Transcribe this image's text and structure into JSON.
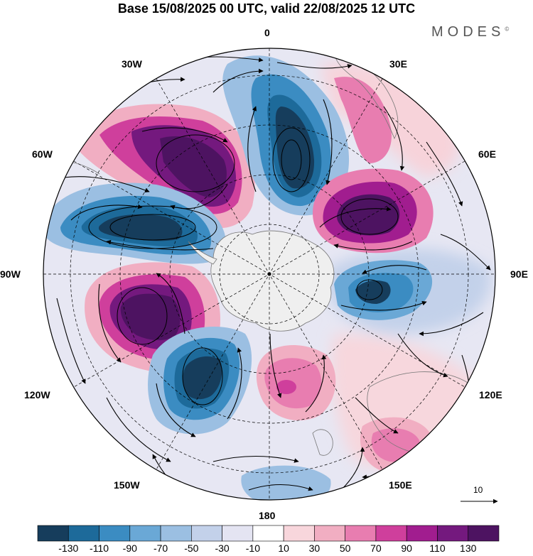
{
  "header": {
    "title": "Base 15/08/2025 00 UTC, valid 22/08/2025 12 UTC",
    "brand": "MODES",
    "brand_mark": "©"
  },
  "map": {
    "projection": "polar-stereographic-south",
    "longitude_labels": {
      "top": "0",
      "bottom": "180",
      "left": "90W",
      "right": "90E",
      "upper_left_1": "30W",
      "upper_left_2": "60W",
      "upper_right_1": "30E",
      "upper_right_2": "60E",
      "lower_left_1": "120W",
      "lower_left_2": "150W",
      "lower_right_1": "120E",
      "lower_right_2": "150E"
    },
    "anomaly_centers": [
      {
        "name": "low-0-meridian",
        "sign": "negative",
        "level": -130
      },
      {
        "name": "high-30W-45W",
        "sign": "positive",
        "level": 130
      },
      {
        "name": "low-60W-90W",
        "sign": "negative",
        "level": -130
      },
      {
        "name": "high-30E-60E",
        "sign": "positive",
        "level": 130
      },
      {
        "name": "low-90E",
        "sign": "negative",
        "level": -110
      },
      {
        "name": "high-100W",
        "sign": "positive",
        "level": 130
      },
      {
        "name": "low-140W",
        "sign": "negative",
        "level": -130
      },
      {
        "name": "high-170E",
        "sign": "positive",
        "level": 90
      },
      {
        "name": "high-150E",
        "sign": "positive",
        "level": 50
      },
      {
        "name": "low-180",
        "sign": "negative",
        "level": -50
      }
    ]
  },
  "reference_vector": {
    "label": "10"
  },
  "colorbar": {
    "labels": [
      "-130",
      "-110",
      "-90",
      "-70",
      "-50",
      "-30",
      "-10",
      "10",
      "30",
      "50",
      "70",
      "90",
      "110",
      "130"
    ],
    "colors": [
      "#163d5c",
      "#1d6a9a",
      "#3b8cc2",
      "#6aa8d6",
      "#9bbfe2",
      "#c3d1ea",
      "#e4e4f2",
      "#ffffff",
      "#f8d6dc",
      "#f1aec2",
      "#e87db0",
      "#cf3f9c",
      "#a11d8f",
      "#74197e",
      "#4d1361"
    ]
  },
  "colors": {
    "land": "#efefef",
    "frame": "#000000"
  }
}
